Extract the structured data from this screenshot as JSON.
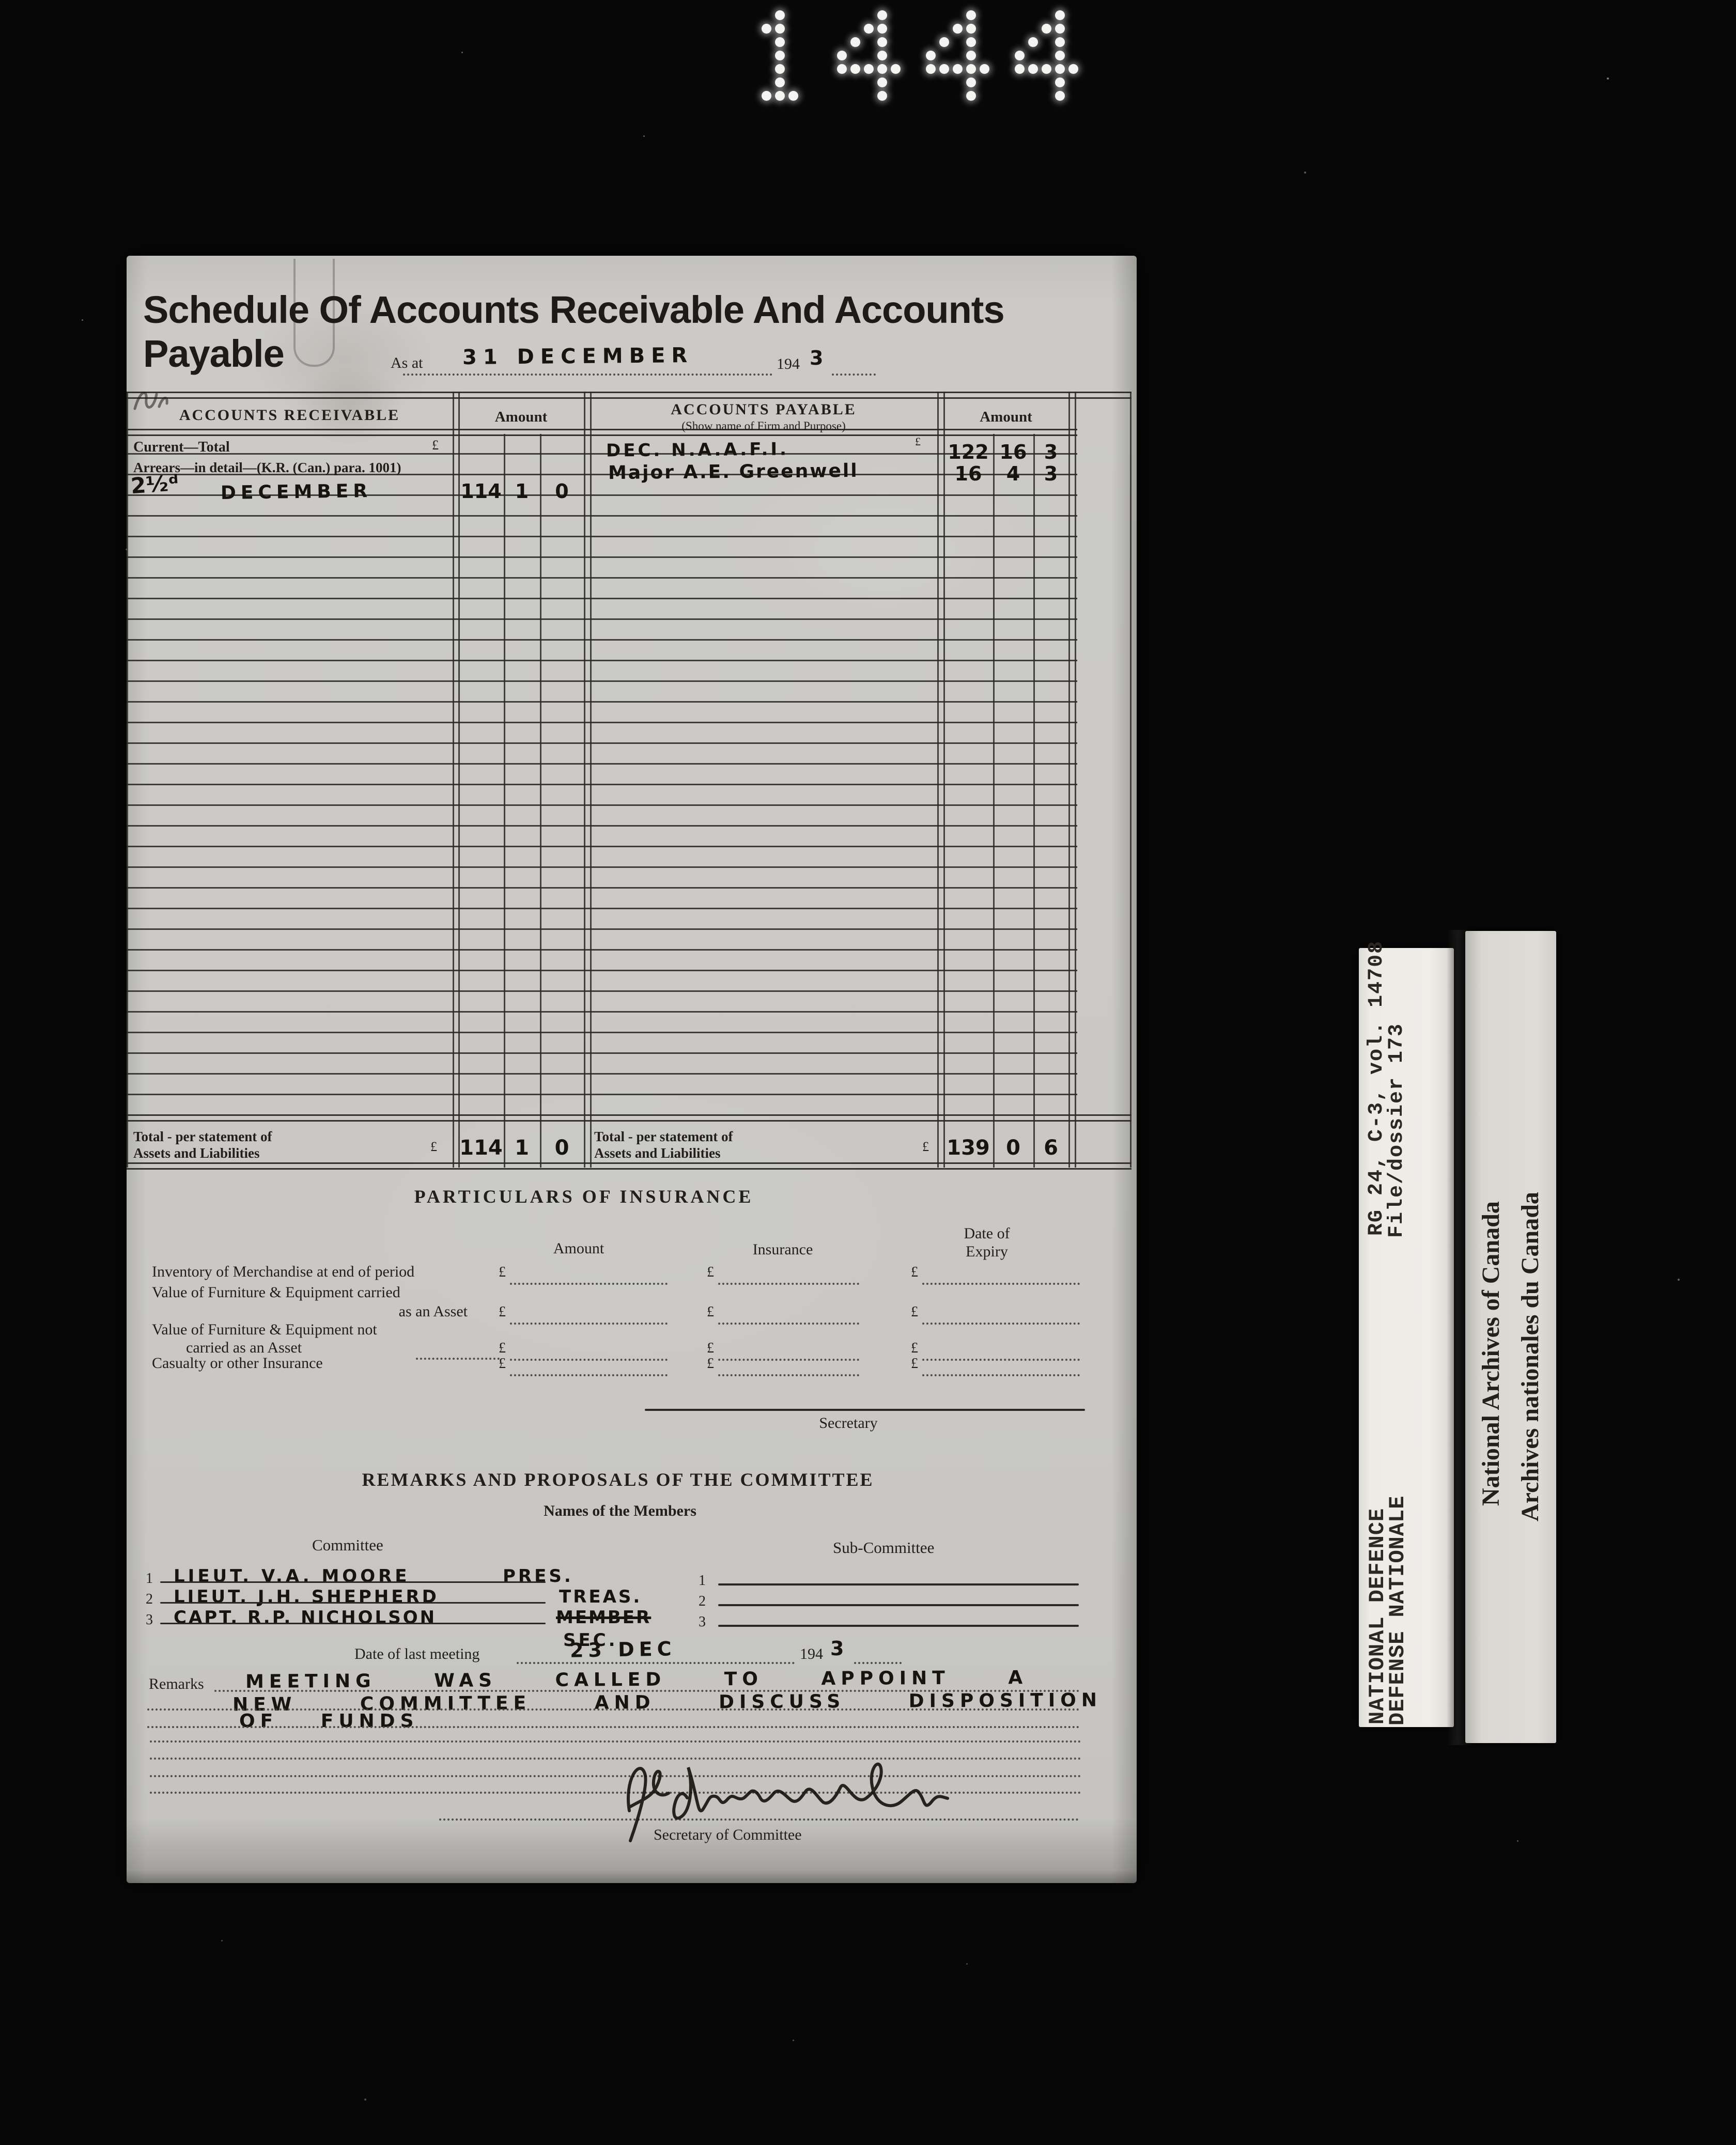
{
  "film_number": "1444",
  "form": {
    "title": "Schedule Of Accounts Receivable And Accounts Payable",
    "as_at": {
      "label": "As at",
      "date": "31 DECEMBER",
      "year_printed": "194",
      "year_written": "3"
    },
    "currency": "£",
    "table": {
      "receivable": {
        "header": "ACCOUNTS RECEIVABLE",
        "amount_header": "Amount",
        "row1_label": "Current—Total",
        "row2_label": "Arrears—in detail—(K.R. (Can.) para. 1001)",
        "entry": {
          "prefix": "2½ᵈ",
          "text": "DECEMBER",
          "pounds": "114",
          "shillings": "1",
          "pence": "0"
        },
        "total": {
          "pounds": "114",
          "shillings": "1",
          "pence": "0"
        }
      },
      "payable": {
        "header": "ACCOUNTS PAYABLE",
        "subheader": "(Show name of Firm and Purpose)",
        "amount_header": "Amount",
        "rows": [
          {
            "name": "DEC. N.A.A.F.I.",
            "pounds": "122",
            "shillings": "16",
            "pence": "3"
          },
          {
            "name": "Major A.E. Greenwell",
            "pounds": "16",
            "shillings": "4",
            "pence": "3"
          }
        ],
        "total": {
          "pounds": "139",
          "shillings": "0",
          "pence": "6"
        }
      },
      "total_label_line1": "Total - per statement of",
      "total_label_line2": "Assets and Liabilities"
    },
    "insurance": {
      "heading": "PARTICULARS OF INSURANCE",
      "columns": {
        "amount": "Amount",
        "insurance": "Insurance",
        "expiry_line1": "Date of",
        "expiry_line2": "Expiry"
      },
      "row1": "Inventory of Merchandise at end of period",
      "row2_line1": "Value of Furniture & Equipment carried",
      "row2_line2": "as an Asset",
      "row3_line1": "Value of Furniture & Equipment not",
      "row3_line2": "carried as an Asset",
      "row4": "Casualty or other Insurance",
      "secretary_label": "Secretary"
    },
    "committee": {
      "heading": "REMARKS AND PROPOSALS OF THE COMMITTEE",
      "subheading": "Names of the Members",
      "committee_label": "Committee",
      "subcommittee_label": "Sub-Committee",
      "members": [
        {
          "num": "1",
          "name": "LIEUT. V.A. MOORE",
          "role": "PRES."
        },
        {
          "num": "2",
          "name": "LIEUT. J.H. SHEPHERD",
          "role": "TREAS."
        },
        {
          "num": "3",
          "name": "CAPT. R.P. NICHOLSON",
          "struck": "MEMBER",
          "role": "SEC."
        }
      ],
      "sub_numbers": [
        "1",
        "2",
        "3"
      ],
      "date_label": "Date of last meeting",
      "date_written": "23 DEC",
      "year_printed": "194",
      "year_written": "3",
      "remarks_label": "Remarks",
      "remarks_lines": [
        "MEETING WAS CALLED TO APPOINT A",
        "NEW COMMITTEE AND DISCUSS DISPOSITION",
        "OF FUNDS"
      ],
      "signature_caption": "Secretary of Committee"
    }
  },
  "labels": {
    "reference_line1": "RG 24, C-3, vol. 14708",
    "reference_line2": "File/dossier 173",
    "department_line1": "NATIONAL DEFENCE",
    "department_line2": "DEFENSE NATIONALE",
    "archives_line1": "National Archives of Canada",
    "archives_line2": "Archives nationales du Canada"
  }
}
